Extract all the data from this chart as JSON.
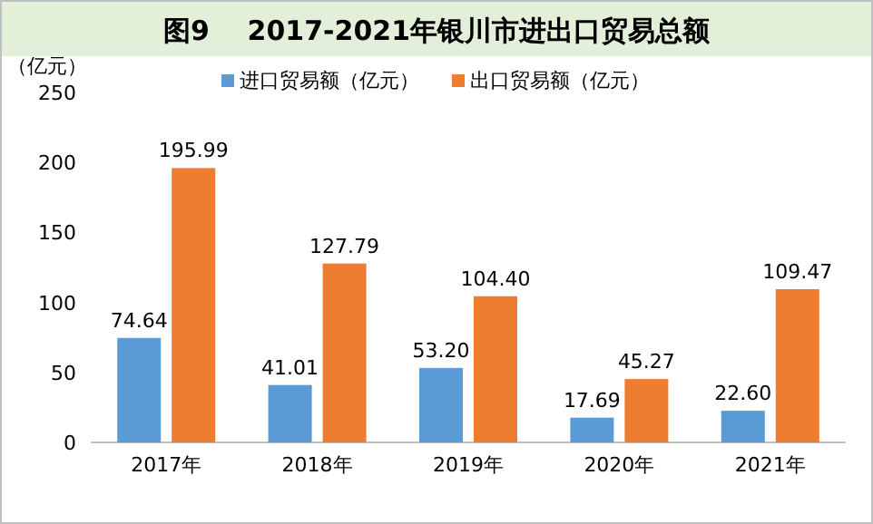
{
  "chart_data": {
    "type": "bar",
    "title": "图9    2017-2021年银川市进出口贸易总额",
    "ylabel": "（亿元）",
    "categories": [
      "2017年",
      "2018年",
      "2019年",
      "2020年",
      "2021年"
    ],
    "series": [
      {
        "name": "进口贸易额（亿元）",
        "color": "#5b9bd5",
        "values": [
          74.64,
          41.01,
          53.2,
          17.69,
          22.6
        ],
        "value_labels": [
          "74.64",
          "41.01",
          "53.20",
          "17.69",
          "22.60"
        ]
      },
      {
        "name": "出口贸易额（亿元）",
        "color": "#ed7d31",
        "values": [
          195.99,
          127.79,
          104.4,
          45.27,
          109.47
        ],
        "value_labels": [
          "195.99",
          "127.79",
          "104.40",
          "45.27",
          "109.47"
        ]
      }
    ],
    "ylim": [
      0,
      250
    ],
    "yticks": [
      0,
      50,
      100,
      150,
      200,
      250
    ],
    "legend": "top",
    "grid": false
  }
}
